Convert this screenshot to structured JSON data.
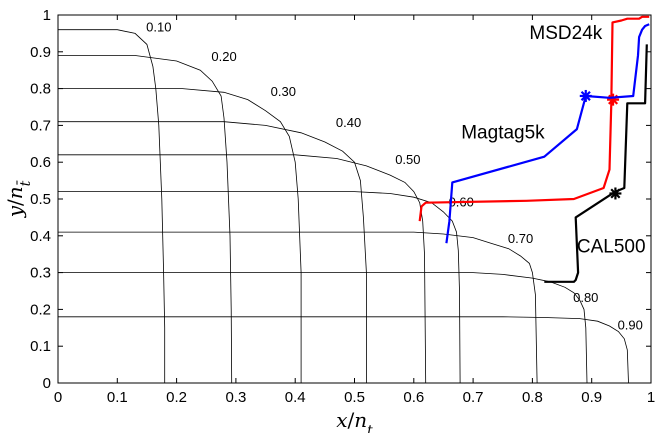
{
  "chart_data": {
    "type": "line",
    "title": "",
    "xlabel": "x/n_t",
    "ylabel": "y/n_t̄",
    "xlim": [
      0,
      1
    ],
    "ylim": [
      0,
      1
    ],
    "xticks": [
      0,
      0.1,
      0.2,
      0.3,
      0.4,
      0.5,
      0.6,
      0.7,
      0.8,
      0.9,
      1
    ],
    "xtick_labels": [
      "0",
      "0.1",
      "0.2",
      "0.3",
      "0.4",
      "0.5",
      "0.6",
      "0.7",
      "0.8",
      "0.9",
      "1"
    ],
    "yticks": [
      0,
      0.1,
      0.2,
      0.3,
      0.4,
      0.5,
      0.6,
      0.7,
      0.8,
      0.9,
      1
    ],
    "ytick_labels": [
      "0",
      "0.1",
      "0.2",
      "0.3",
      "0.4",
      "0.5",
      "0.6",
      "0.7",
      "0.8",
      "0.9",
      "1"
    ],
    "grid": false,
    "contours": [
      {
        "label": "0.10",
        "label_pos": [
          0.17,
          0.955
        ],
        "points": [
          [
            0,
            0.96
          ],
          [
            0.1,
            0.96
          ],
          [
            0.13,
            0.95
          ],
          [
            0.15,
            0.92
          ],
          [
            0.16,
            0.86
          ],
          [
            0.165,
            0.8
          ],
          [
            0.17,
            0.7
          ],
          [
            0.175,
            0.5
          ],
          [
            0.178,
            0.3
          ],
          [
            0.18,
            0.15
          ],
          [
            0.18,
            0
          ]
        ]
      },
      {
        "label": "0.20",
        "label_pos": [
          0.28,
          0.875
        ],
        "points": [
          [
            0,
            0.89
          ],
          [
            0.13,
            0.89
          ],
          [
            0.2,
            0.875
          ],
          [
            0.24,
            0.85
          ],
          [
            0.26,
            0.82
          ],
          [
            0.275,
            0.78
          ],
          [
            0.28,
            0.72
          ],
          [
            0.285,
            0.6
          ],
          [
            0.29,
            0.4
          ],
          [
            0.292,
            0.2
          ],
          [
            0.293,
            0
          ]
        ]
      },
      {
        "label": "0.30",
        "label_pos": [
          0.38,
          0.78
        ],
        "points": [
          [
            0,
            0.8
          ],
          [
            0.21,
            0.8
          ],
          [
            0.28,
            0.79
          ],
          [
            0.32,
            0.77
          ],
          [
            0.35,
            0.74
          ],
          [
            0.375,
            0.71
          ],
          [
            0.39,
            0.67
          ],
          [
            0.4,
            0.6
          ],
          [
            0.405,
            0.5
          ],
          [
            0.41,
            0.3
          ],
          [
            0.41,
            0
          ]
        ]
      },
      {
        "label": "0.40",
        "label_pos": [
          0.49,
          0.695
        ],
        "points": [
          [
            0,
            0.71
          ],
          [
            0.28,
            0.71
          ],
          [
            0.35,
            0.7
          ],
          [
            0.41,
            0.68
          ],
          [
            0.45,
            0.655
          ],
          [
            0.48,
            0.63
          ],
          [
            0.5,
            0.6
          ],
          [
            0.51,
            0.55
          ],
          [
            0.515,
            0.45
          ],
          [
            0.52,
            0.3
          ],
          [
            0.52,
            0
          ]
        ]
      },
      {
        "label": "0.50",
        "label_pos": [
          0.59,
          0.595
        ],
        "points": [
          [
            0,
            0.62
          ],
          [
            0.4,
            0.62
          ],
          [
            0.47,
            0.61
          ],
          [
            0.52,
            0.59
          ],
          [
            0.56,
            0.565
          ],
          [
            0.585,
            0.545
          ],
          [
            0.6,
            0.52
          ],
          [
            0.61,
            0.49
          ],
          [
            0.615,
            0.44
          ],
          [
            0.618,
            0.35
          ],
          [
            0.62,
            0
          ]
        ]
      },
      {
        "label": "0.60",
        "label_pos": [
          0.68,
          0.48
        ],
        "points": [
          [
            0,
            0.52
          ],
          [
            0.5,
            0.52
          ],
          [
            0.56,
            0.515
          ],
          [
            0.6,
            0.505
          ],
          [
            0.63,
            0.49
          ],
          [
            0.65,
            0.465
          ],
          [
            0.665,
            0.44
          ],
          [
            0.672,
            0.41
          ],
          [
            0.675,
            0.36
          ],
          [
            0.677,
            0.25
          ],
          [
            0.678,
            0
          ]
        ]
      },
      {
        "label": "0.70",
        "label_pos": [
          0.78,
          0.38
        ],
        "points": [
          [
            0,
            0.41
          ],
          [
            0.6,
            0.41
          ],
          [
            0.65,
            0.405
          ],
          [
            0.7,
            0.395
          ],
          [
            0.73,
            0.38
          ],
          [
            0.76,
            0.365
          ],
          [
            0.78,
            0.345
          ],
          [
            0.795,
            0.325
          ],
          [
            0.8,
            0.3
          ],
          [
            0.805,
            0.24
          ],
          [
            0.808,
            0
          ]
        ]
      },
      {
        "label": "0.80",
        "label_pos": [
          0.89,
          0.22
        ],
        "points": [
          [
            0,
            0.3
          ],
          [
            0.7,
            0.3
          ],
          [
            0.75,
            0.295
          ],
          [
            0.8,
            0.285
          ],
          [
            0.83,
            0.275
          ],
          [
            0.855,
            0.26
          ],
          [
            0.87,
            0.245
          ],
          [
            0.88,
            0.225
          ],
          [
            0.887,
            0.2
          ],
          [
            0.89,
            0.15
          ],
          [
            0.892,
            0
          ]
        ]
      },
      {
        "label": "0.90",
        "label_pos": [
          0.965,
          0.145
        ],
        "points": [
          [
            0,
            0.18
          ],
          [
            0.75,
            0.18
          ],
          [
            0.82,
            0.178
          ],
          [
            0.88,
            0.175
          ],
          [
            0.91,
            0.168
          ],
          [
            0.93,
            0.155
          ],
          [
            0.945,
            0.14
          ],
          [
            0.955,
            0.12
          ],
          [
            0.96,
            0.09
          ],
          [
            0.962,
            0
          ]
        ]
      }
    ],
    "series": [
      {
        "name": "MSD24k",
        "color": "#ff0000",
        "label_pos": [
          0.795,
          0.935
        ],
        "points": [
          [
            0.61,
            0.44
          ],
          [
            0.613,
            0.48
          ],
          [
            0.62,
            0.49
          ],
          [
            0.79,
            0.495
          ],
          [
            0.87,
            0.5
          ],
          [
            0.92,
            0.53
          ],
          [
            0.93,
            0.58
          ],
          [
            0.933,
            0.76
          ],
          [
            0.935,
            0.98
          ],
          [
            0.95,
            0.985
          ],
          [
            0.96,
            0.99
          ],
          [
            0.98,
            0.99
          ],
          [
            0.985,
            0.995
          ],
          [
            0.997,
            0.995
          ]
        ],
        "marker": [
          0.936,
          0.77
        ]
      },
      {
        "name": "Magtag5k",
        "color": "#0000ff",
        "label_pos": [
          0.68,
          0.665
        ],
        "points": [
          [
            0.655,
            0.38
          ],
          [
            0.66,
            0.44
          ],
          [
            0.665,
            0.545
          ],
          [
            0.82,
            0.615
          ],
          [
            0.875,
            0.69
          ],
          [
            0.89,
            0.78
          ],
          [
            0.93,
            0.775
          ],
          [
            0.97,
            0.78
          ],
          [
            0.978,
            0.89
          ],
          [
            0.98,
            0.94
          ],
          [
            0.985,
            0.96
          ],
          [
            0.99,
            0.97
          ],
          [
            0.997,
            0.975
          ]
        ],
        "marker": [
          0.89,
          0.78
        ]
      },
      {
        "name": "CAL500",
        "color": "#000000",
        "label_pos": [
          0.875,
          0.355
        ],
        "points": [
          [
            0.82,
            0.275
          ],
          [
            0.87,
            0.275
          ],
          [
            0.873,
            0.28
          ],
          [
            0.877,
            0.3
          ],
          [
            0.873,
            0.45
          ],
          [
            0.94,
            0.52
          ],
          [
            0.955,
            0.53
          ],
          [
            0.96,
            0.76
          ],
          [
            0.99,
            0.76
          ],
          [
            0.993,
            0.92
          ]
        ],
        "marker": [
          0.94,
          0.515
        ]
      }
    ]
  }
}
